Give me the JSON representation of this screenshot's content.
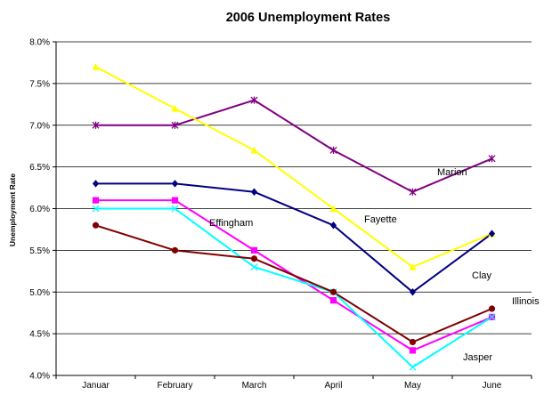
{
  "chart_data": {
    "type": "line",
    "title": "2006 Unemployment Rates",
    "xlabel": "",
    "ylabel": "Unemployment Rate",
    "categories": [
      "Januar",
      "February",
      "March",
      "April",
      "May",
      "June"
    ],
    "y_ticks": [
      "4.0%",
      "4.5%",
      "5.0%",
      "5.5%",
      "6.0%",
      "6.5%",
      "7.0%",
      "7.5%",
      "8.0%"
    ],
    "ylim": [
      4.0,
      8.0
    ],
    "grid": true,
    "legend": "none",
    "series": [
      {
        "name": "Marion",
        "color": "#800080",
        "marker": "star",
        "values": [
          7.0,
          7.0,
          7.3,
          6.7,
          6.2,
          6.6
        ]
      },
      {
        "name": "Fayette",
        "color": "#FFFF00",
        "marker": "triangle",
        "values": [
          7.7,
          7.2,
          6.7,
          6.0,
          5.3,
          5.7
        ]
      },
      {
        "name": "Clay",
        "color": "#000080",
        "marker": "diamond",
        "values": [
          6.3,
          6.3,
          6.2,
          5.8,
          5.0,
          5.7
        ]
      },
      {
        "name": "Effingham",
        "color": "#FF00FF",
        "marker": "square",
        "values": [
          6.1,
          6.1,
          5.5,
          4.9,
          4.3,
          4.7
        ]
      },
      {
        "name": "Jasper",
        "color": "#00FFFF",
        "marker": "x",
        "values": [
          6.0,
          6.0,
          5.3,
          5.0,
          4.1,
          4.7
        ]
      },
      {
        "name": "Illinois",
        "color": "#800000",
        "marker": "circle",
        "values": [
          5.8,
          5.5,
          5.4,
          5.0,
          4.4,
          4.8
        ]
      }
    ]
  }
}
